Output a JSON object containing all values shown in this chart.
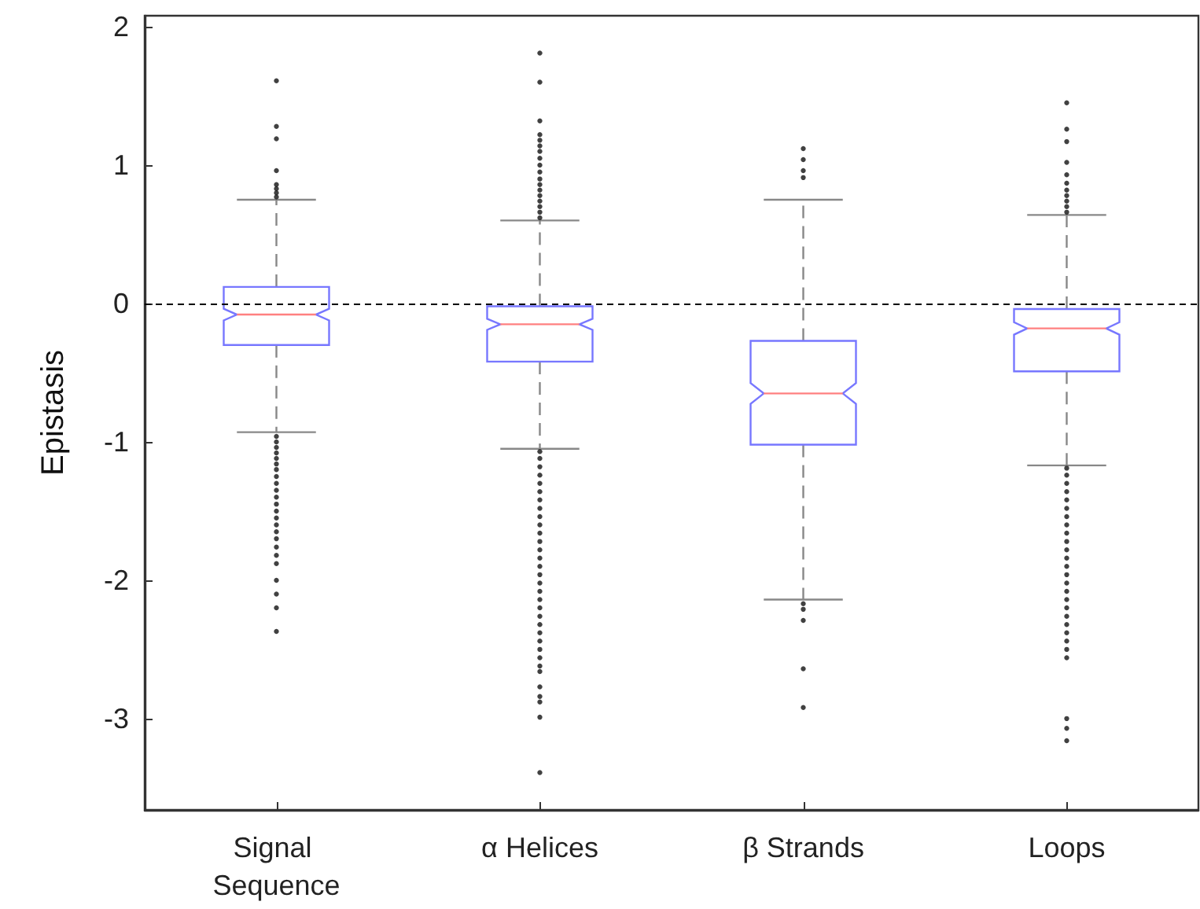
{
  "chart_data": {
    "type": "box",
    "ylabel": "Epistasis",
    "categories": [
      "Signal Sequence",
      "α Helices",
      "β Strands",
      "Loops"
    ],
    "series": [
      {
        "color": "#7777ff",
        "boxes": [
          {
            "low": -0.93,
            "q1": -0.3,
            "median": -0.08,
            "q3": 0.12,
            "high": 0.75,
            "outliers": [
              0.77,
              0.8,
              0.83,
              0.86,
              0.96,
              1.19,
              1.28,
              1.61,
              -0.96,
              -1.0,
              -1.04,
              -1.08,
              -1.12,
              -1.16,
              -1.2,
              -1.25,
              -1.3,
              -1.35,
              -1.4,
              -1.45,
              -1.5,
              -1.55,
              -1.6,
              -1.65,
              -1.7,
              -1.76,
              -1.82,
              -1.88,
              -2.0,
              -2.1,
              -2.2,
              -2.37
            ]
          },
          {
            "low": -1.05,
            "q1": -0.42,
            "median": -0.15,
            "q3": -0.02,
            "high": 0.6,
            "outliers": [
              0.62,
              0.66,
              0.7,
              0.74,
              0.78,
              0.82,
              0.86,
              0.9,
              0.95,
              1.0,
              1.05,
              1.1,
              1.14,
              1.18,
              1.22,
              1.32,
              1.6,
              1.81,
              -1.07,
              -1.12,
              -1.18,
              -1.24,
              -1.3,
              -1.36,
              -1.42,
              -1.48,
              -1.54,
              -1.6,
              -1.66,
              -1.72,
              -1.78,
              -1.84,
              -1.9,
              -1.96,
              -2.02,
              -2.08,
              -2.14,
              -2.2,
              -2.26,
              -2.32,
              -2.38,
              -2.44,
              -2.5,
              -2.56,
              -2.62,
              -2.66,
              -2.77,
              -2.84,
              -2.88,
              -2.99,
              -3.39
            ]
          },
          {
            "low": -2.14,
            "q1": -1.02,
            "median": -0.65,
            "q3": -0.27,
            "high": 0.75,
            "outliers": [
              0.91,
              0.96,
              1.04,
              1.12,
              -2.17,
              -2.21,
              -2.29,
              -2.64,
              -2.92
            ]
          },
          {
            "low": -1.17,
            "q1": -0.49,
            "median": -0.18,
            "q3": -0.04,
            "high": 0.64,
            "outliers": [
              0.66,
              0.7,
              0.74,
              0.78,
              0.82,
              0.87,
              0.93,
              1.02,
              1.17,
              1.26,
              1.45,
              -1.19,
              -1.24,
              -1.3,
              -1.36,
              -1.42,
              -1.48,
              -1.54,
              -1.6,
              -1.66,
              -1.72,
              -1.78,
              -1.84,
              -1.9,
              -1.96,
              -2.02,
              -2.08,
              -2.14,
              -2.2,
              -2.26,
              -2.32,
              -2.38,
              -2.44,
              -2.5,
              -2.56,
              -3.0,
              -3.07,
              -3.16
            ]
          }
        ]
      }
    ],
    "ylim": [
      -3.66,
      2.08
    ],
    "yticks": [
      -3,
      -2,
      -1,
      0,
      1,
      2
    ],
    "grid": false,
    "marker": "circle",
    "ref_lines": [
      {
        "axis": "y",
        "value": 0,
        "color": "#000000",
        "line_style": "dashed"
      }
    ]
  }
}
